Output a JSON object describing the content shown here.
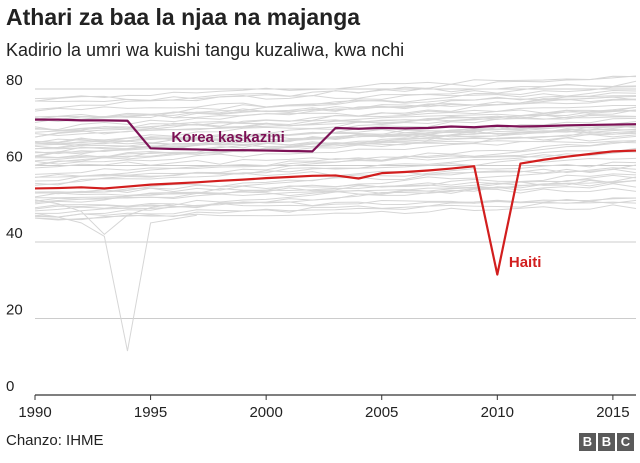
{
  "title": "Athari za baa la njaa na majanga",
  "subtitle": "Kadirio la umri wa kuishi tangu kuzaliwa, kwa nchi",
  "source": "Chanzo: IHME",
  "logo_letters": [
    "B",
    "B",
    "C"
  ],
  "chart_data": {
    "type": "line",
    "title": "Athari za baa la njaa na majanga",
    "xlabel": "",
    "ylabel": "",
    "xlim": [
      1990,
      2016
    ],
    "ylim": [
      0,
      80
    ],
    "x_ticks": [
      1990,
      1995,
      2000,
      2005,
      2010,
      2015
    ],
    "y_ticks": [
      0,
      20,
      40,
      60,
      80
    ],
    "grid": true,
    "series": [
      {
        "name": "Korea kaskazini",
        "color": "#7d1156",
        "label": "Korea kaskazini",
        "x": [
          1990,
          1991,
          1992,
          1993,
          1994,
          1995,
          1996,
          1997,
          1998,
          1999,
          2000,
          2001,
          2002,
          2003,
          2004,
          2005,
          2006,
          2007,
          2008,
          2009,
          2010,
          2011,
          2012,
          2013,
          2014,
          2015,
          2016
        ],
        "values": [
          72,
          72,
          71.8,
          71.8,
          71.7,
          64.5,
          64.3,
          64.2,
          64,
          64,
          63.9,
          63.8,
          63.7,
          69.8,
          69.6,
          69.8,
          69.7,
          69.8,
          70.2,
          70.0,
          70.4,
          70.2,
          70.3,
          70.5,
          70.6,
          70.7,
          70.8
        ]
      },
      {
        "name": "Haiti",
        "color": "#d21e1e",
        "label": "Haiti",
        "x": [
          1990,
          1991,
          1992,
          1993,
          1994,
          1995,
          1996,
          1997,
          1998,
          1999,
          2000,
          2001,
          2002,
          2003,
          2004,
          2005,
          2006,
          2007,
          2008,
          2009,
          2010,
          2011,
          2012,
          2013,
          2014,
          2015,
          2016
        ],
        "values": [
          54,
          54.1,
          54.3,
          54,
          54.5,
          55,
          55.3,
          55.6,
          56,
          56.3,
          56.7,
          57,
          57.3,
          57.4,
          56.6,
          58,
          58.3,
          58.7,
          59.2,
          59.8,
          31.5,
          60.5,
          61.5,
          62.3,
          63,
          63.7,
          63.9
        ]
      }
    ],
    "background_series_count": 60
  }
}
